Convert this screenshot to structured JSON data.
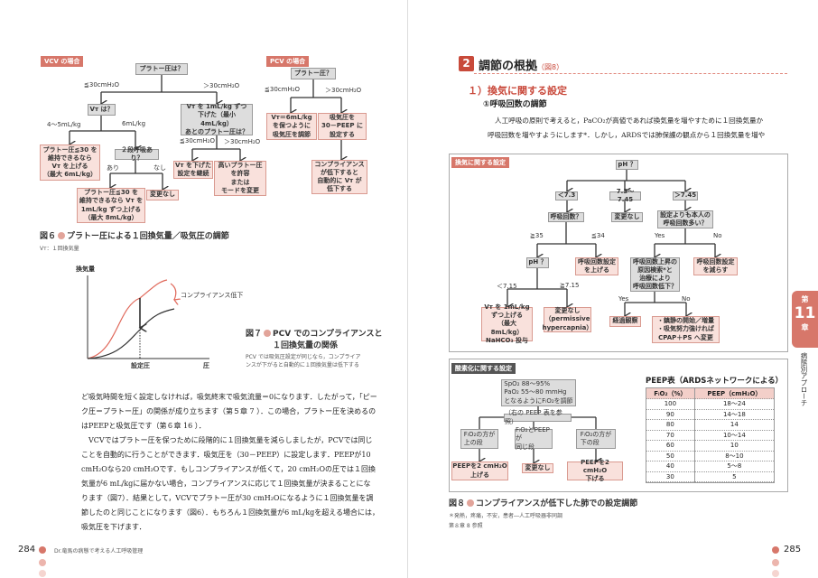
{
  "left_page": {
    "fig6": {
      "vcv_tag": "VCV の場合",
      "boxes": {
        "v_q1": "プラトー圧は？",
        "v_vt": "Vᴛ は？",
        "v_p1": "プラトー圧≦30 を\n維持できるなら\nVᴛ を上げる\n（最大 6mL/kg）",
        "v_2": "２段呼吸あり？",
        "v_p2": "プラトー圧≦30 を\n維持できるなら Vᴛ を\n1mL/kg ずつ上げる\n（最大 8mL/kg）",
        "v_nc": "変更なし",
        "v_r": "Vᴛ を 1mL/kg ずつ\n下げた（最小 4mL/kg）\nあとのプラトー圧は？",
        "v_r1": "Vᴛ を下げた\n設定を継続",
        "v_r2": "高いプラトー圧\nを許容\nまたは\nモードを変更"
      },
      "labels": {
        "a": "≦30cmH₂O",
        "b": "＞30cmH₂O",
        "c": "4～5mL/kg",
        "d": "6mL/kg",
        "e": "あり",
        "f": "なし",
        "g": "≦30cmH₂O",
        "h": "＞30cmH₂O"
      },
      "pcv_tag": "PCV の場合",
      "pcv_boxes": {
        "p_q": "プラトー圧？",
        "p_1": "Vᴛ＝6mL/kg\nを保つように\n吸気圧を調節",
        "p_2": "吸気圧を\n30－PEEP に\n設定する",
        "p_3": "コンプライアンス\nが低下すると\n自動的に Vᴛ が\n低下する"
      },
      "pcv_labels": {
        "a": "≦30cmH₂O",
        "b": "＞30cmH₂O"
      },
      "caption_num": "図６",
      "caption": "プラトー圧による１回換気量／吸気圧の調節",
      "note": "Vᴛ：１回換気量"
    },
    "fig7": {
      "ylabel": "換気量",
      "xlabel": "圧",
      "xtick": "設定圧",
      "annotation": "コンプライアンス低下",
      "caption_num": "図７",
      "caption_l1": "PCV でのコンプライアンスと",
      "caption_l2": "１回換気量の関係",
      "note_l1": "PCV では吸気圧設定が同じなら，コンプライア",
      "note_l2": "ンスが下がると自動的に１回換気量は低下する",
      "colors": {
        "normal": "#e0685a",
        "reduced": "#333333"
      }
    },
    "body": [
      "ど吸気時間を短く設定しなければ，吸気終末で吸気流量＝0になります．したがって，「ピー",
      "ク圧＝プラトー圧」の関係が成り立ちます（第５章 7 ）．この場合，プラトー圧を決めるの",
      "はPEEPと吸気圧です（第６章 16 ）．",
      "　VCVではプラトー圧を保つために段階的に１回換気量を減らしましたが，PCVでは同じ",
      "ことを自動的に行うことができます．吸気圧を（30－PEEP）に設定します．PEEPが10",
      "cmH₂Oなら20 cmH₂Oです．もしコンプライアンスが低くて，20 cmH₂Oの圧では１回換",
      "気量が6 mL/kgに届かない場合，コンプライアンスに応じて１回換気量が決まることにな",
      "ります（図7）．結果として，VCVでプラトー圧が30 cmH₂Oになるように１回換気量を調",
      "節したのと同じことになります（図6）．もちろん１回換気量が6 mL/kgを超える場合には，",
      "吸気圧を下げます．"
    ],
    "footer": {
      "page": "284",
      "title": "Dr.竜馬の病態で考える人工呼吸管理"
    }
  },
  "right_page": {
    "section_num": "2",
    "section_title": "調節の根拠",
    "section_ref": "（図8）",
    "sub1": "１）換気に関する設定",
    "sub2": "①呼吸回数の調節",
    "body": [
      "人工呼吸の原則で考えると，PaCO₂が高値であれば換気量を増やすために１回換気量か",
      "呼吸回数を増やすようにします*．しかし，ARDSでは肺保護の観点から１回換気量を増や"
    ],
    "fig8": {
      "vent_tag": "換気に関する設定",
      "vent_boxes": {
        "ph1": "pH ？",
        "lt73": "＜7.3",
        "mid": "7.3～7.45",
        "gt745": "＞7.45",
        "rr": "呼吸回数？",
        "nc1": "変更なし",
        "own": "設定よりも本人の\n呼吸回数多い？",
        "ph2": "pH ？",
        "up": "呼吸回数設定\nを上げる",
        "cause": "呼吸回数上昇の\n原因検索*と\n治療により\n呼吸回数低下？",
        "down": "呼吸回数設定\nを減らす",
        "vt": "Vᴛ を 1mL/kg\nずつ上げる\n（最大 8mL/kg）\nNaHCO₃ 投与",
        "perm": "変更なし\n（permissive\nhypercapnia）",
        "obs": "経過観察",
        "sed": "・鎮静の開始／増量\n・吸気努力強ければ\nCPAP＋PS へ変更"
      },
      "vent_labels": {
        "a": "≧35",
        "b": "≦34",
        "c": "Yes",
        "d": "No",
        "e": "＜7.15",
        "f": "≧7.15",
        "g": "Yes",
        "h": "No"
      },
      "oxy_tag": "酸素化に関する設定",
      "oxy_boxes": {
        "target": "SpO₂ 88～95%\nPaO₂ 55～80 mmHg\nとなるようにFᵢO₂を調節",
        "ref": "（右の PEEP 表を参照）",
        "o1": "FᵢO₂の方が\n上の段",
        "o2": "FᵢO₂とPEEPが\n同じ段",
        "o3": "FᵢO₂の方が\n下の段",
        "r1": "PEEPを2 cmH₂O\n上げる",
        "r2": "変更なし",
        "r3": "PEEPを2 cmH₂O\n下げる"
      },
      "table": {
        "title": "PEEP表（ARDSネットワークによる）",
        "headers": [
          "FᵢO₂（%）",
          "PEEP（cmH₂O）"
        ],
        "rows": [
          [
            "100",
            "18～24"
          ],
          [
            "90",
            "14～18"
          ],
          [
            "80",
            "14"
          ],
          [
            "70",
            "10～14"
          ],
          [
            "60",
            "10"
          ],
          [
            "50",
            "8～10"
          ],
          [
            "40",
            "5～8"
          ],
          [
            "30",
            "5"
          ]
        ]
      },
      "caption_num": "図８",
      "caption": "コンプライアンスが低下した肺での設定調節",
      "note1": "＊発熱，疼痛，不安，患者―人工呼吸器非同調",
      "note2": "第８章 8 参照"
    },
    "chapter_tab": {
      "pre": "第",
      "num": "11",
      "post": "章",
      "title": "病態別アプローチ"
    },
    "footer": {
      "page": "285"
    }
  },
  "colors": {
    "accent": "#d7776a",
    "accent_light": "#e2a49a",
    "box_gray": "#dddddd",
    "box_pink": "#f9e1dc"
  }
}
